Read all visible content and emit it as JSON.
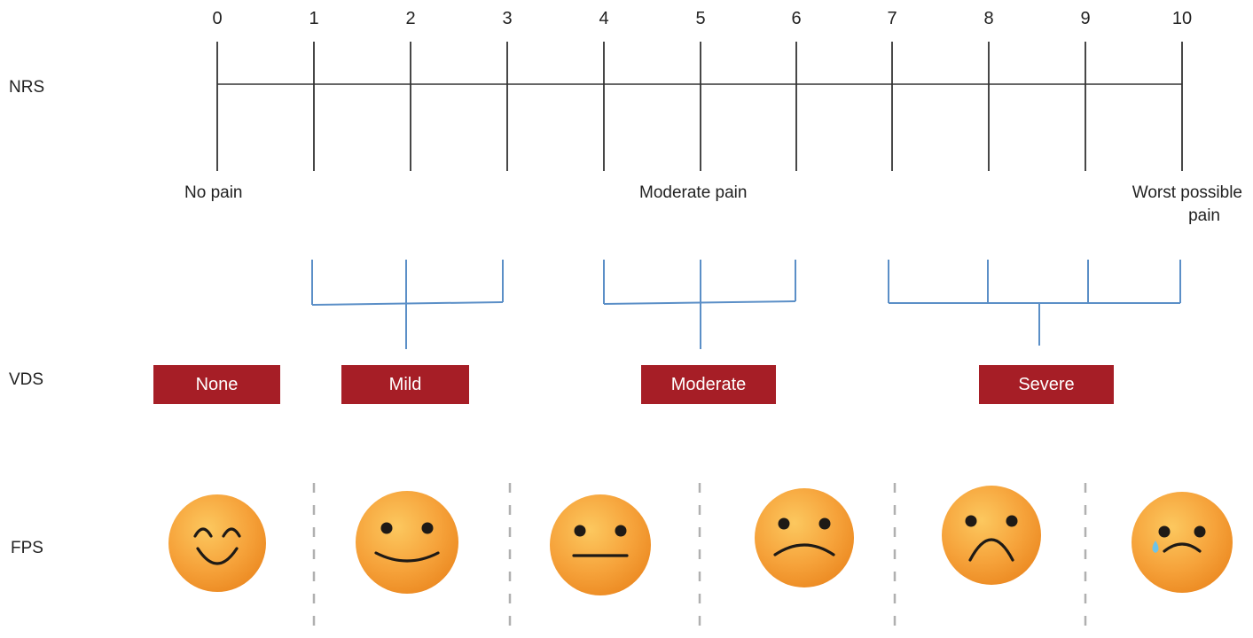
{
  "rows": {
    "nrs": "NRS",
    "vds": "VDS",
    "fps": "FPS"
  },
  "nrs": {
    "numbers": [
      "0",
      "1",
      "2",
      "3",
      "4",
      "5",
      "6",
      "7",
      "8",
      "9",
      "10"
    ],
    "anchors": {
      "left": "No pain",
      "middle": "Moderate pain",
      "right_line1": "Worst possible",
      "right_line2": "pain"
    }
  },
  "vds": {
    "categories": [
      "None",
      "Mild",
      "Moderate",
      "Severe"
    ],
    "box_color": "#a61e26"
  },
  "fps": {
    "faces": [
      {
        "expression": "smiling-closed-eyes"
      },
      {
        "expression": "smile"
      },
      {
        "expression": "neutral"
      },
      {
        "expression": "slight-frown"
      },
      {
        "expression": "frown"
      },
      {
        "expression": "crying"
      }
    ],
    "face_color": "#f6a33b",
    "tear_color": "#6ec3e8"
  },
  "colors": {
    "nrs_line": "#333333",
    "bracket_line": "#5b8fc7",
    "divider": "#b0b0b0"
  }
}
